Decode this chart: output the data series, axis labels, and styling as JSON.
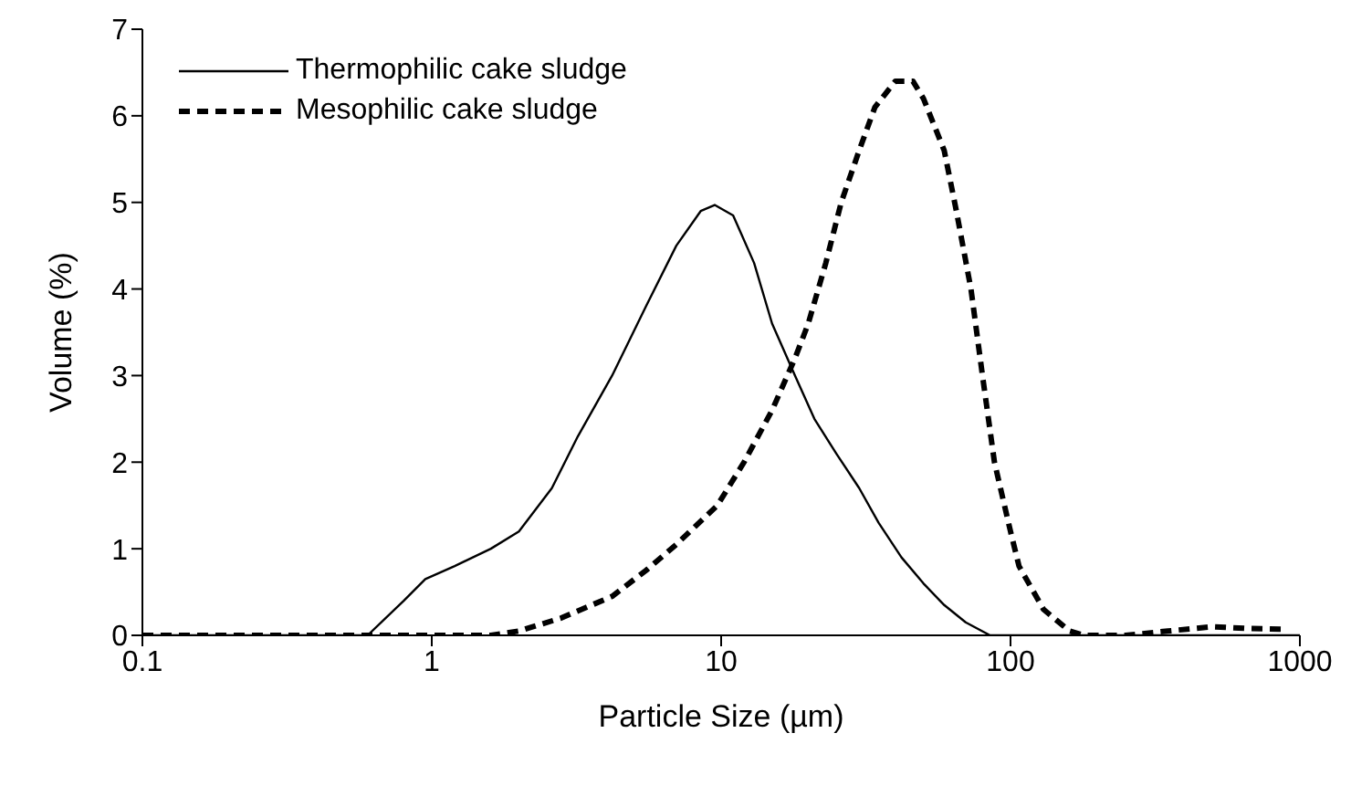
{
  "chart_data": {
    "type": "line",
    "xlabel": "Particle Size (µm)",
    "ylabel": "Volume (%)",
    "log": "x",
    "xlim": [
      0.1,
      1000
    ],
    "xticks": [
      0.1,
      1,
      10,
      100,
      1000
    ],
    "ylim": [
      0,
      7
    ],
    "yticks": [
      0,
      1,
      2,
      3,
      4,
      5,
      6,
      7
    ],
    "grid": false,
    "legend": "top left",
    "marker": "none",
    "series": [
      {
        "name": "Thermophilic cake sludge",
        "color": "#000000",
        "line_style": "solid",
        "x": [
          0.1,
          0.3,
          0.6,
          0.8,
          0.95,
          1.2,
          1.6,
          2.0,
          2.6,
          3.2,
          4.2,
          5.5,
          7,
          8.5,
          9.5,
          11,
          13,
          15,
          18,
          21,
          25,
          30,
          35,
          42,
          50,
          59,
          70,
          85,
          200,
          1000
        ],
        "values": [
          0,
          0,
          0,
          0.4,
          0.65,
          0.8,
          1.0,
          1.2,
          1.7,
          2.3,
          3.0,
          3.8,
          4.5,
          4.9,
          4.97,
          4.85,
          4.3,
          3.6,
          3.0,
          2.5,
          2.1,
          1.7,
          1.3,
          0.9,
          0.6,
          0.35,
          0.15,
          0,
          0,
          0
        ]
      },
      {
        "name": "Mesophilic cake sludge",
        "color": "#000000",
        "line_style": "dashed",
        "x": [
          0.1,
          0.5,
          1.0,
          1.6,
          2.0,
          2.8,
          4.2,
          5.5,
          7,
          9.7,
          12,
          15,
          18,
          20,
          23,
          26,
          30,
          34,
          40,
          46,
          50,
          59,
          65,
          73,
          80,
          88,
          100,
          107,
          130,
          160,
          180,
          250,
          350,
          500,
          650,
          900
        ],
        "values": [
          0,
          0,
          0,
          0,
          0.05,
          0.2,
          0.45,
          0.75,
          1.05,
          1.5,
          2.0,
          2.6,
          3.2,
          3.6,
          4.3,
          5.0,
          5.6,
          6.1,
          6.4,
          6.4,
          6.2,
          5.6,
          4.9,
          4.0,
          3.0,
          2.0,
          1.2,
          0.8,
          0.3,
          0.05,
          0,
          0,
          0.05,
          0.1,
          0.08,
          0.07
        ]
      }
    ]
  }
}
